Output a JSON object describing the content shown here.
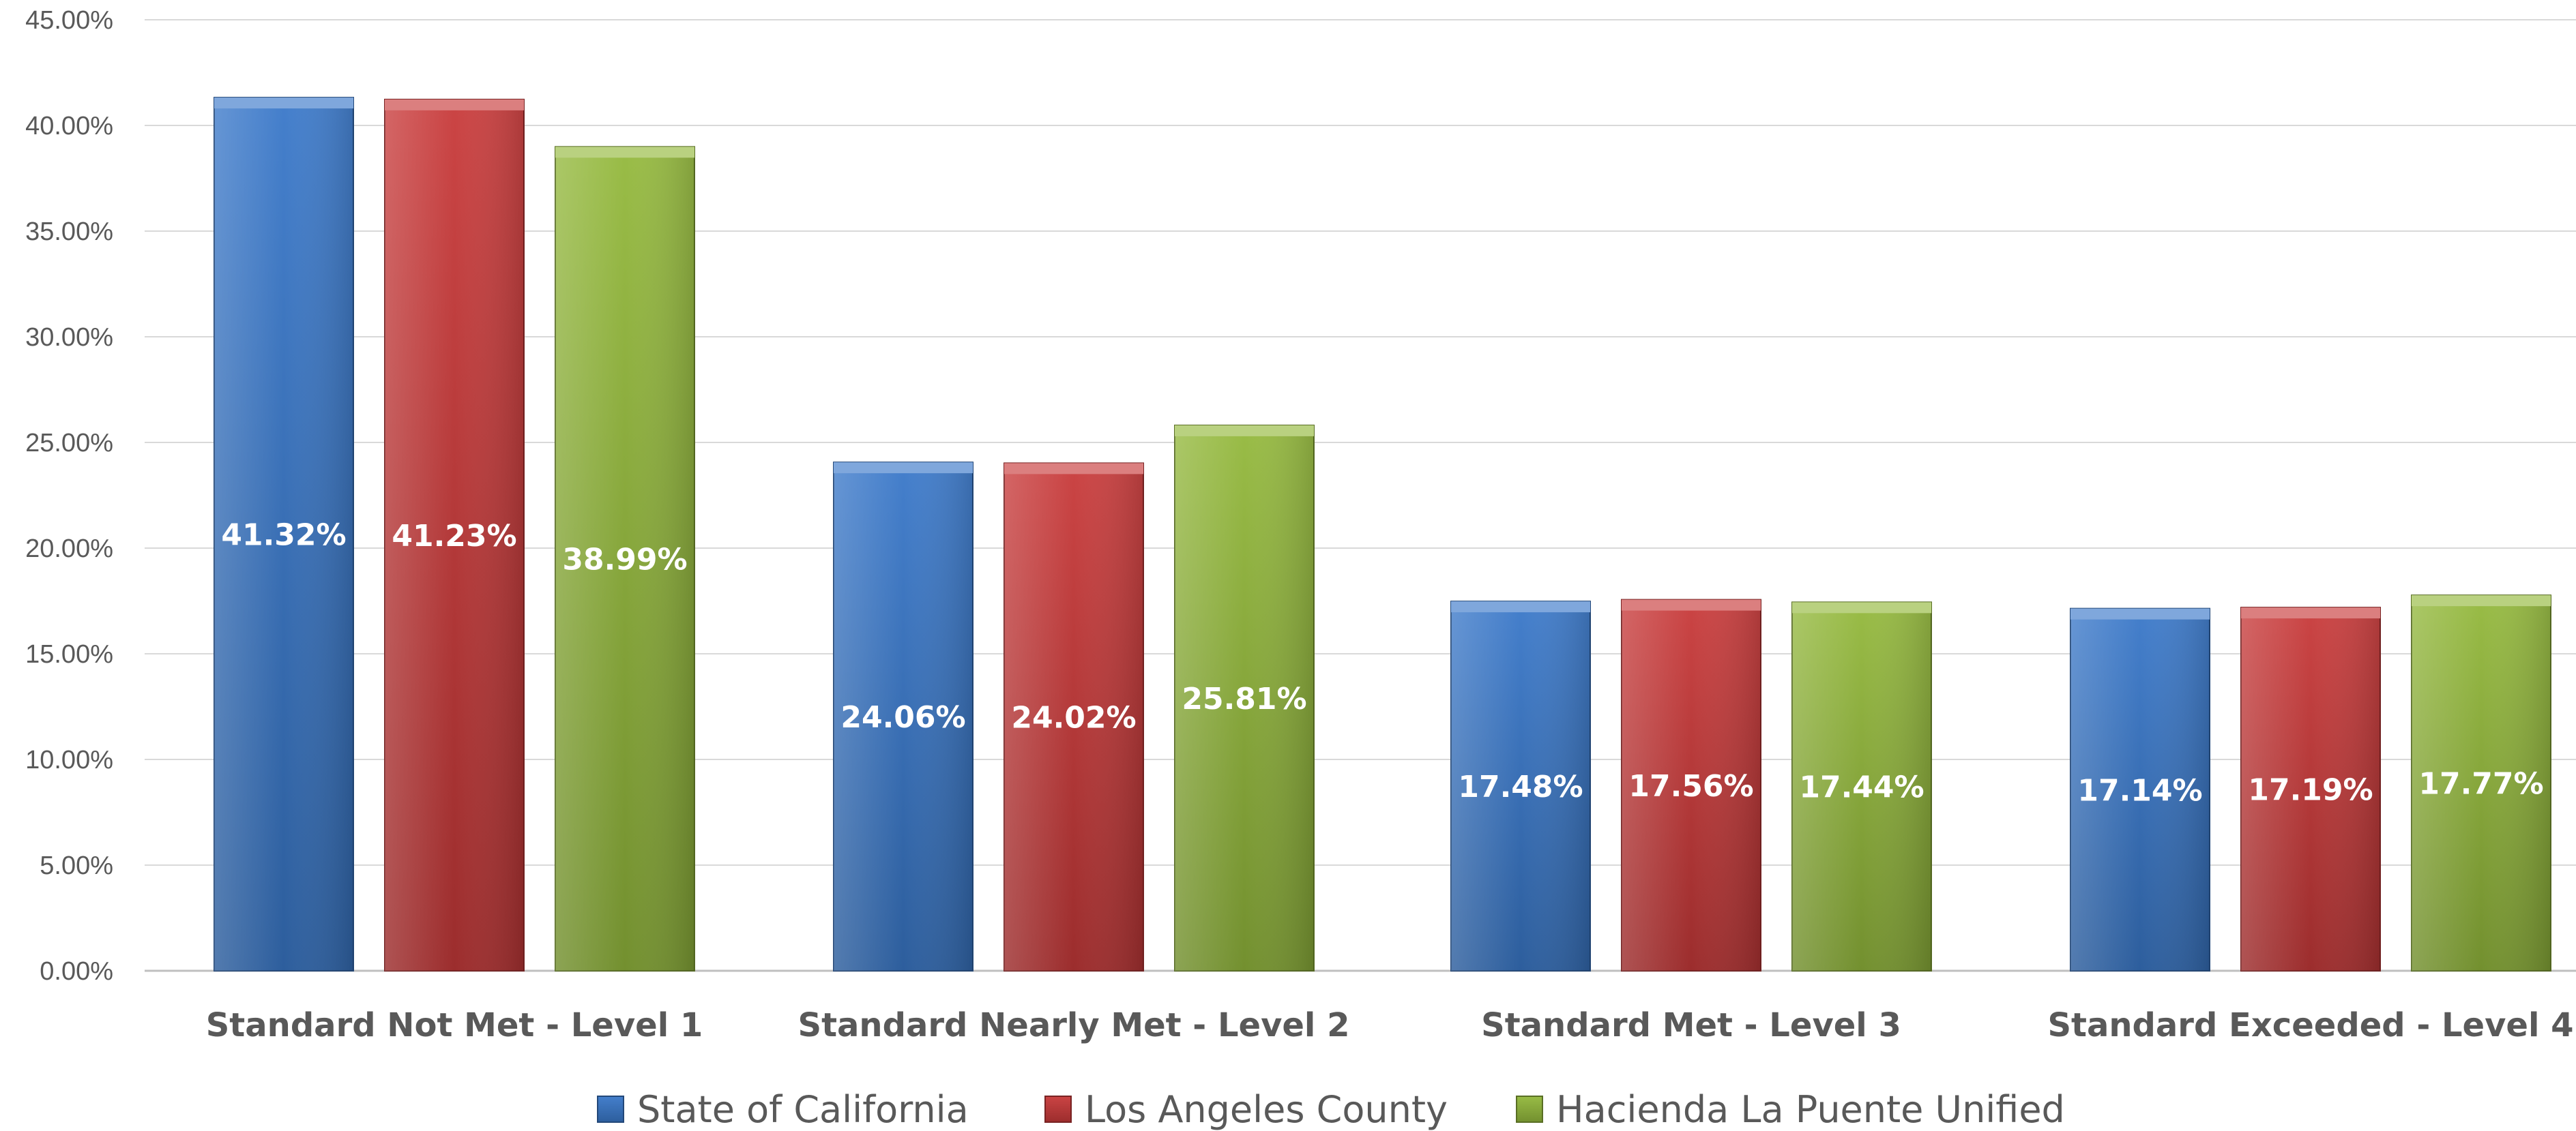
{
  "chart_data": {
    "type": "bar",
    "categories": [
      "Standard Not Met - Level 1",
      "Standard Nearly Met - Level 2",
      "Standard Met - Level 3",
      "Standard Exceeded - Level 4"
    ],
    "series": [
      {
        "name": "State of California",
        "color": "#3a78c9",
        "values": [
          41.32,
          24.06,
          17.48,
          17.14
        ],
        "labels": [
          "41.32%",
          "24.06%",
          "17.48%",
          "17.14%"
        ]
      },
      {
        "name": "Los Angeles County",
        "color": "#c83a3a",
        "values": [
          41.23,
          24.02,
          17.56,
          17.19
        ],
        "labels": [
          "41.23%",
          "24.02%",
          "17.56%",
          "17.19%"
        ]
      },
      {
        "name": "Hacienda La Puente Unified",
        "color": "#94b83c",
        "values": [
          38.99,
          25.81,
          17.44,
          17.77
        ],
        "labels": [
          "38.99%",
          "25.81%",
          "17.44%",
          "17.77%"
        ]
      }
    ],
    "yticks": [
      "0.00%",
      "5.00%",
      "10.00%",
      "15.00%",
      "20.00%",
      "25.00%",
      "30.00%",
      "35.00%",
      "40.00%",
      "45.00%"
    ],
    "ylim": [
      0,
      45
    ],
    "grid": true,
    "legend_position": "bottom",
    "title": "",
    "xlabel": "",
    "ylabel": ""
  }
}
